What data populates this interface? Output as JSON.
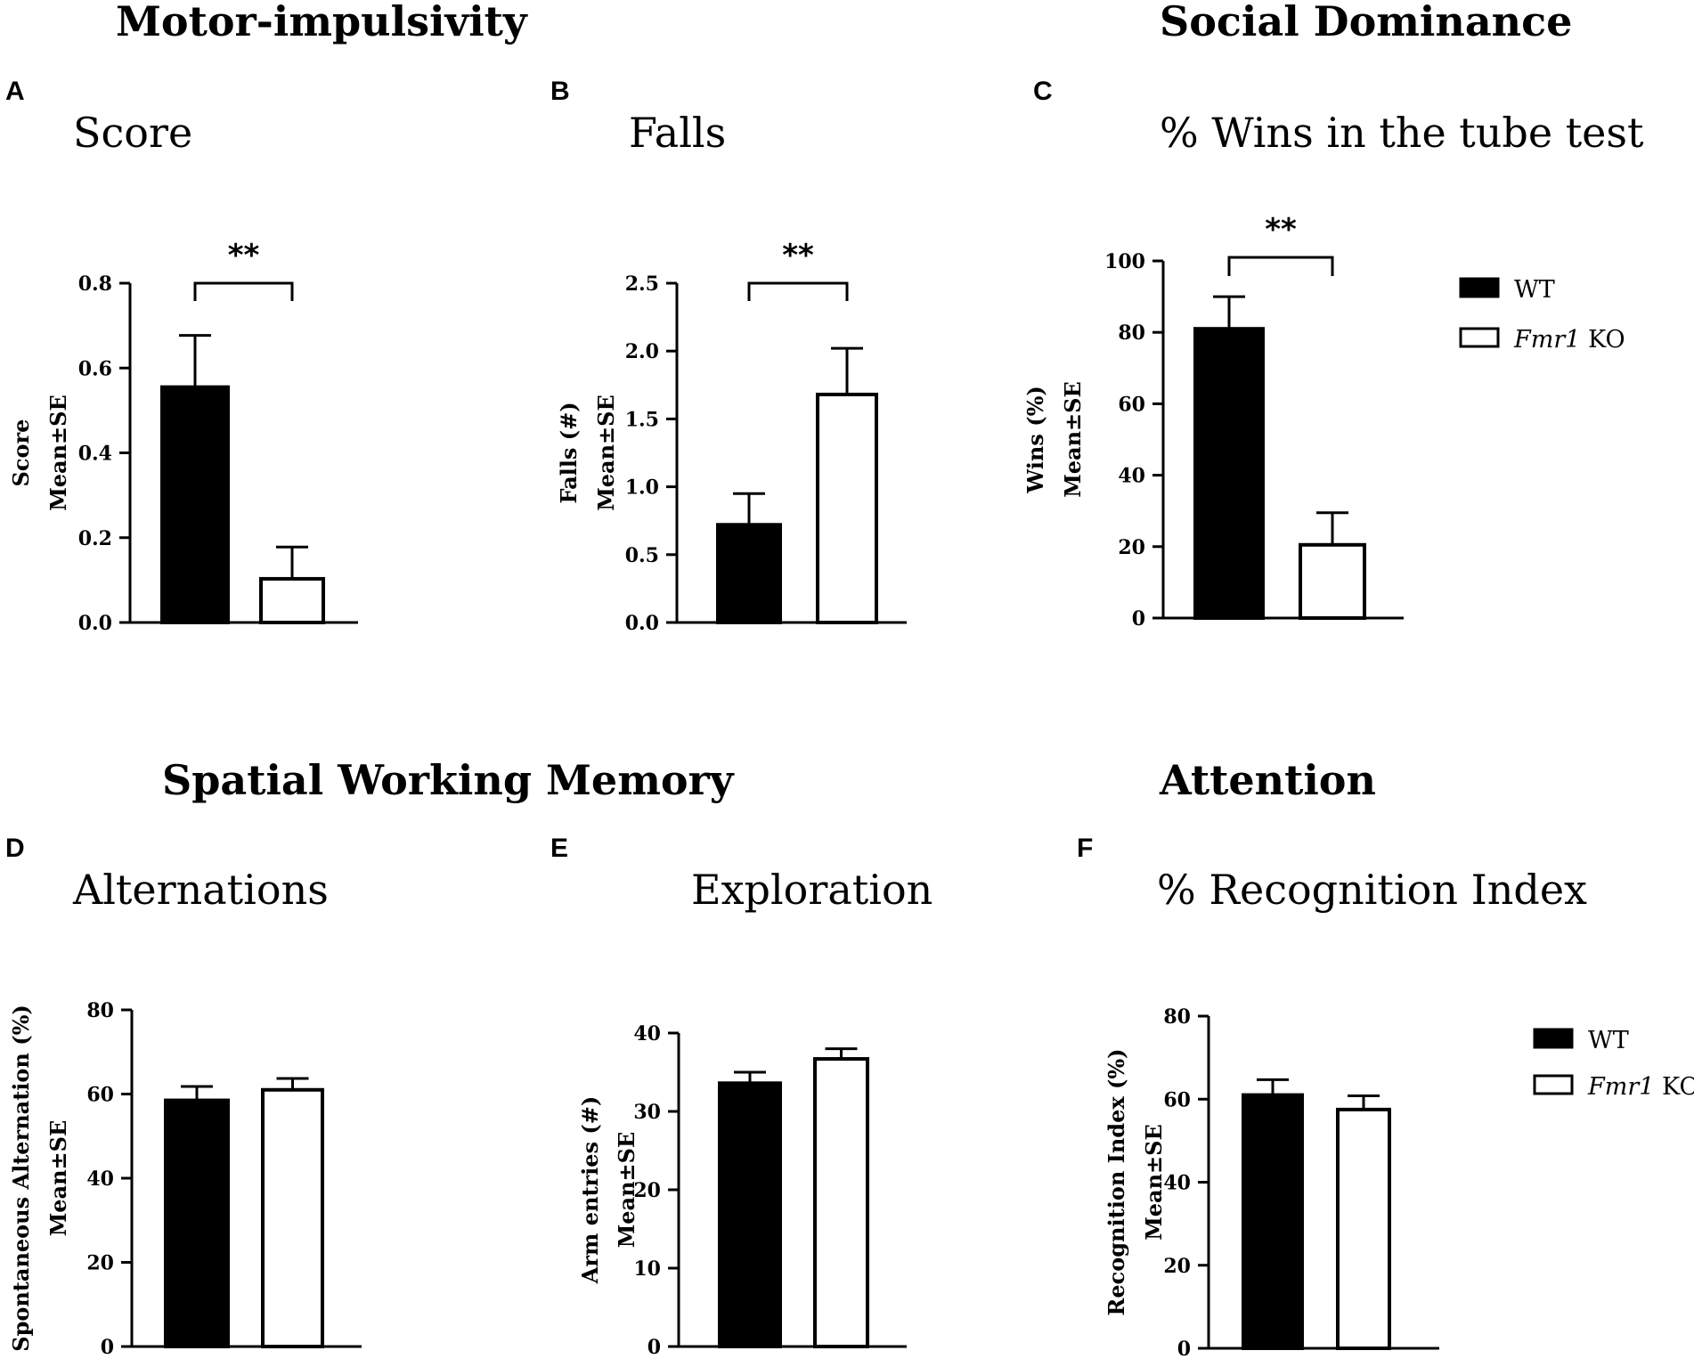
{
  "sections": {
    "motor": "Motor-impulsivity",
    "social": "Social Dominance",
    "spatial": "Spatial Working Memory",
    "attention": "Attention"
  },
  "legend": {
    "wt": "WT",
    "ko_gene": "Fmr1",
    "ko_suffix": " KO"
  },
  "colors": {
    "wt_fill": "#000000",
    "ko_fill": "#ffffff",
    "stroke": "#000000"
  },
  "chart_data": [
    {
      "id": "A",
      "letter": "A",
      "type": "bar",
      "title": "Score",
      "ylabel_1": "Score",
      "ylabel_2": "Mean±SE",
      "categories": [
        "WT",
        "Fmr1 KO"
      ],
      "values": [
        0.555,
        0.103
      ],
      "errors": [
        0.122,
        0.075
      ],
      "ylim": [
        0,
        0.8
      ],
      "ticks": [
        0.0,
        0.2,
        0.4,
        0.6,
        0.8
      ],
      "tick_decimals": 1,
      "significance": "**"
    },
    {
      "id": "B",
      "letter": "B",
      "type": "bar",
      "title": "Falls",
      "ylabel_1": "Falls (#)",
      "ylabel_2": "Mean±SE",
      "categories": [
        "WT",
        "Fmr1 KO"
      ],
      "values": [
        0.72,
        1.68
      ],
      "errors": [
        0.23,
        0.34
      ],
      "ylim": [
        0,
        2.5
      ],
      "ticks": [
        0.0,
        0.5,
        1.0,
        1.5,
        2.0,
        2.5
      ],
      "tick_decimals": 1,
      "significance": "**"
    },
    {
      "id": "C",
      "letter": "C",
      "type": "bar",
      "title": "% Wins in the tube test",
      "ylabel_1": "Wins (%)",
      "ylabel_2": "Mean±SE",
      "categories": [
        "WT",
        "Fmr1 KO"
      ],
      "values": [
        81,
        20.5
      ],
      "errors": [
        9,
        9
      ],
      "ylim": [
        0,
        100
      ],
      "ticks": [
        0,
        20,
        40,
        60,
        80,
        100
      ],
      "tick_decimals": 0,
      "significance": "**",
      "legend": true
    },
    {
      "id": "D",
      "letter": "D",
      "type": "bar",
      "title": "Alternations",
      "ylabel_1": "Spontaneous Alternation (%)",
      "ylabel_2": "Mean±SE",
      "categories": [
        "WT",
        "Fmr1 KO"
      ],
      "values": [
        58.5,
        61
      ],
      "errors": [
        3.3,
        2.7
      ],
      "ylim": [
        0,
        80
      ],
      "ticks": [
        0,
        20,
        40,
        60,
        80
      ],
      "tick_decimals": 0,
      "significance": ""
    },
    {
      "id": "E",
      "letter": "E",
      "type": "bar",
      "title": "Exploration",
      "ylabel_1": "Arm entries (#)",
      "ylabel_2": "Mean±SE",
      "categories": [
        "WT",
        "Fmr1 KO"
      ],
      "values": [
        33.6,
        36.7
      ],
      "errors": [
        1.4,
        1.3
      ],
      "ylim": [
        0,
        40
      ],
      "ticks": [
        0,
        10,
        20,
        30,
        40
      ],
      "tick_decimals": 0,
      "significance": ""
    },
    {
      "id": "F",
      "letter": "F",
      "type": "bar",
      "title": "% Recognition Index",
      "ylabel_1": "Recognition Index  (%)",
      "ylabel_2": "Mean±SE",
      "categories": [
        "WT",
        "Fmr1 KO"
      ],
      "values": [
        61,
        57.5
      ],
      "errors": [
        3.7,
        3.3
      ],
      "ylim": [
        0,
        80
      ],
      "ticks": [
        0,
        20,
        40,
        60,
        80
      ],
      "tick_decimals": 0,
      "significance": "",
      "legend": true
    }
  ]
}
